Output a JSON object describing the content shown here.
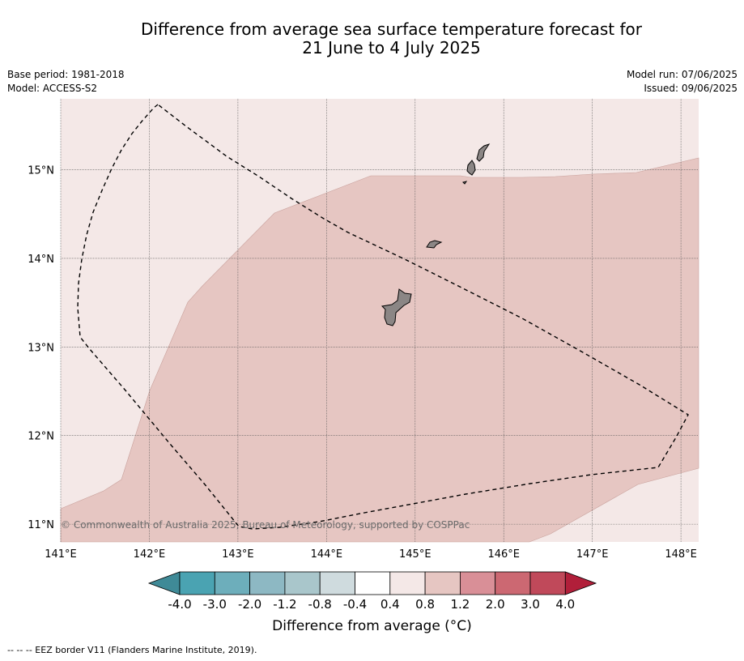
{
  "title": {
    "line1": "Difference from average sea surface temperature forecast for",
    "line2": "21 June to 4 July 2025"
  },
  "meta": {
    "base_period": "Base period: 1981-2018",
    "model": "Model: ACCESS-S2",
    "model_run": "Model run: 07/06/2025",
    "issued": "Issued: 09/06/2025"
  },
  "map": {
    "lon_range": [
      141.0,
      148.2
    ],
    "lat_range": [
      10.8,
      15.8
    ],
    "lon_ticks": [
      "141°E",
      "142°E",
      "143°E",
      "144°E",
      "145°E",
      "146°E",
      "147°E",
      "148°E"
    ],
    "lat_ticks": [
      "15°N",
      "14°N",
      "13°N",
      "12°N",
      "11°N"
    ],
    "copyright": "© Commonwealth of Australia 2025, Bureau of Meteorology, supported by COSPPac",
    "colors": {
      "band_0_4_to_0_8": "#f4e8e7",
      "band_0_8_to_1_2": "#e6c6c2",
      "land": "#8b8685"
    }
  },
  "colorbar": {
    "title": "Difference from average (°C)",
    "tick_labels": [
      "-4.0",
      "-3.0",
      "-2.0",
      "-1.2",
      "-0.8",
      "-0.4",
      "0.4",
      "0.8",
      "1.2",
      "2.0",
      "3.0",
      "4.0"
    ],
    "colors": [
      "#3f8a97",
      "#4aa3b2",
      "#6daebb",
      "#8db8c3",
      "#a9c6cb",
      "#cfdbde",
      "#ffffff",
      "#f4e8e7",
      "#e6c6c2",
      "#d98f97",
      "#cc6872",
      "#c0495a",
      "#b11f3a"
    ]
  },
  "footnote": "--  --  -- EEZ border V11 (Flanders Marine Institute, 2019)."
}
